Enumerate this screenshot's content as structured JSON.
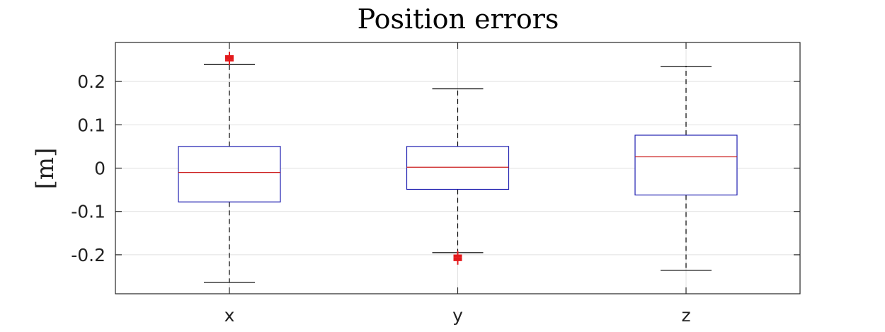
{
  "chart_data": {
    "type": "boxplot",
    "title": "Position errors",
    "xlabel": "",
    "ylabel": "[m]",
    "ylim": [
      -0.29,
      0.29
    ],
    "yticks": [
      -0.2,
      -0.1,
      0,
      0.1,
      0.2
    ],
    "ytick_labels": [
      "-0.2",
      "-0.1",
      "0",
      "0.1",
      "0.2"
    ],
    "categories": [
      "x",
      "y",
      "z"
    ],
    "boxes": [
      {
        "label": "x",
        "whisker_low": -0.264,
        "q1": -0.078,
        "median": -0.01,
        "q3": 0.05,
        "whisker_high": 0.239,
        "outliers": [
          0.248,
          0.251,
          0.254,
          0.257,
          0.259
        ]
      },
      {
        "label": "y",
        "whisker_low": -0.195,
        "q1": -0.049,
        "median": 0.002,
        "q3": 0.05,
        "whisker_high": 0.183,
        "outliers": [
          -0.201,
          -0.204,
          -0.207,
          -0.21,
          -0.213
        ]
      },
      {
        "label": "z",
        "whisker_low": -0.236,
        "q1": -0.062,
        "median": 0.026,
        "q3": 0.076,
        "whisker_high": 0.235,
        "outliers": []
      }
    ],
    "grid": true,
    "colors": {
      "box": "#1f1fb0",
      "median": "#cc1f1f",
      "whisker": "#000000",
      "outlier": "#e31a1c"
    }
  }
}
